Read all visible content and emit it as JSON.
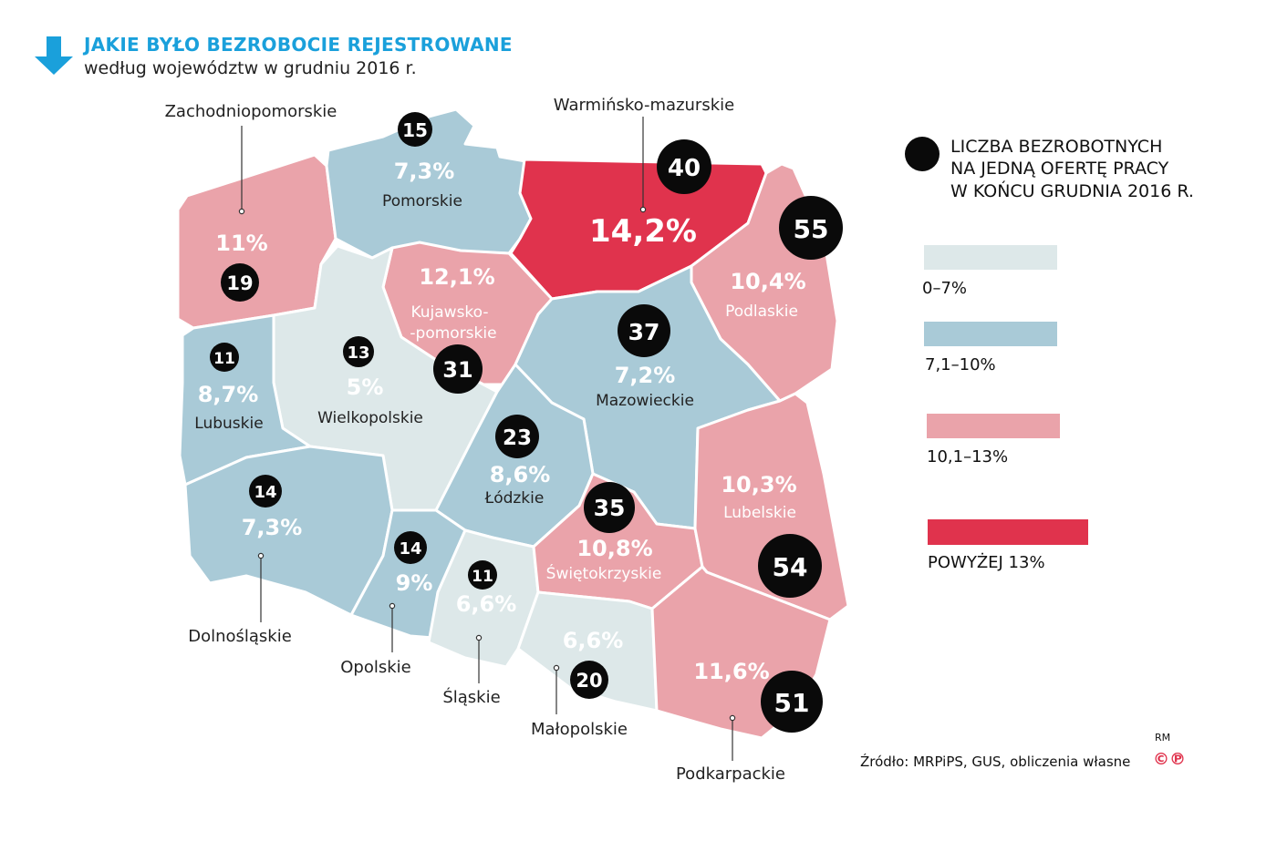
{
  "header": {
    "title": "JAKIE BYŁO BEZROBOCIE REJESTROWANE",
    "subtitle": "według województw w grudniu 2016 r."
  },
  "colors": {
    "cat_0_7": "#dde8e9",
    "cat_7_10": "#a9cad7",
    "cat_10_13": "#eaa3aa",
    "cat_over_13": "#e0334d",
    "bubble": "#0a0a0a",
    "title": "#1aa0db"
  },
  "regions": [
    {
      "id": "zachodniopomorskie",
      "name": "Zachodniopomorskie",
      "rate": "11%",
      "bubble": "19",
      "category": "10,1–13%"
    },
    {
      "id": "pomorskie",
      "name": "Pomorskie",
      "rate": "7,3%",
      "bubble": "15",
      "category": "7,1–10%"
    },
    {
      "id": "warminsko",
      "name": "Warmińsko-mazurskie",
      "rate": "14,2%",
      "bubble": "40",
      "category": "POWYŻEJ 13%"
    },
    {
      "id": "podlaskie",
      "name": "Podlaskie",
      "rate": "10,4%",
      "bubble": "55",
      "category": "10,1–13%"
    },
    {
      "id": "kujawsko",
      "name_line1": "Kujawsko-",
      "name_line2": "-pomorskie",
      "rate": "12,1%",
      "bubble": "31",
      "category": "10,1–13%"
    },
    {
      "id": "wielkopolskie",
      "name": "Wielkopolskie",
      "rate": "5%",
      "bubble": "13",
      "category": "0–7%"
    },
    {
      "id": "lubuskie",
      "name": "Lubuskie",
      "rate": "8,7%",
      "bubble": "11",
      "category": "7,1–10%"
    },
    {
      "id": "mazowieckie",
      "name": "Mazowieckie",
      "rate": "7,2%",
      "bubble": "37",
      "category": "7,1–10%"
    },
    {
      "id": "lodzkie",
      "name": "Łódzkie",
      "rate": "8,6%",
      "bubble": "23",
      "category": "7,1–10%"
    },
    {
      "id": "dolnoslaskie",
      "name": "Dolnośląskie",
      "rate": "7,3%",
      "bubble": "14",
      "category": "7,1–10%"
    },
    {
      "id": "opolskie",
      "name": "Opolskie",
      "rate": "9%",
      "bubble": "14",
      "category": "7,1–10%"
    },
    {
      "id": "slaskie",
      "name": "Śląskie",
      "rate": "6,6%",
      "bubble": "11",
      "category": "0–7%"
    },
    {
      "id": "swietokrzyskie",
      "name": "Świętokrzyskie",
      "rate": "10,8%",
      "bubble": "35",
      "category": "10,1–13%"
    },
    {
      "id": "lubelskie",
      "name": "Lubelskie",
      "rate": "10,3%",
      "bubble": "54",
      "category": "10,1–13%"
    },
    {
      "id": "malopolskie",
      "name": "Małopolskie",
      "rate": "6,6%",
      "bubble": "20",
      "category": "0–7%"
    },
    {
      "id": "podkarpackie",
      "name": "Podkarpackie",
      "rate": "11,6%",
      "bubble": "51",
      "category": "10,1–13%"
    }
  ],
  "legend": {
    "bubble_title": [
      "LICZBA BEZROBOTNYCH",
      "NA JEDNĄ OFERTĘ PRACY",
      "W KOŃCU GRUDNIA 2016 R."
    ],
    "items": [
      {
        "label": "0–7%",
        "color": "#dde8e9"
      },
      {
        "label": "7,1–10%",
        "color": "#a9cad7"
      },
      {
        "label": "10,1–13%",
        "color": "#eaa3aa"
      },
      {
        "label": "POWYŻEJ 13%",
        "color": "#e0334d"
      }
    ]
  },
  "footer": {
    "source": "Źródło: MRPiPS, GUS, obliczenia własne",
    "author": "RM",
    "logo": "©℗"
  }
}
